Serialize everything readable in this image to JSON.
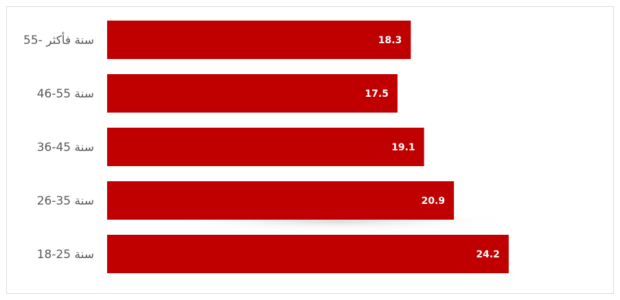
{
  "chart_data": {
    "type": "bar",
    "orientation": "horizontal",
    "categories": [
      "55- سنة فأكثر",
      "46-55 سنة",
      "36-45 سنة",
      "26-35 سنة",
      "18-25 سنة"
    ],
    "values": [
      18.3,
      17.5,
      19.1,
      20.9,
      24.2
    ],
    "xlim": [
      0,
      30
    ],
    "title": "",
    "xlabel": "",
    "ylabel": "",
    "grid": false,
    "legend": "none",
    "bar_color": "#c00000",
    "label_color": "#ffffff",
    "category_label_color": "#595959"
  }
}
